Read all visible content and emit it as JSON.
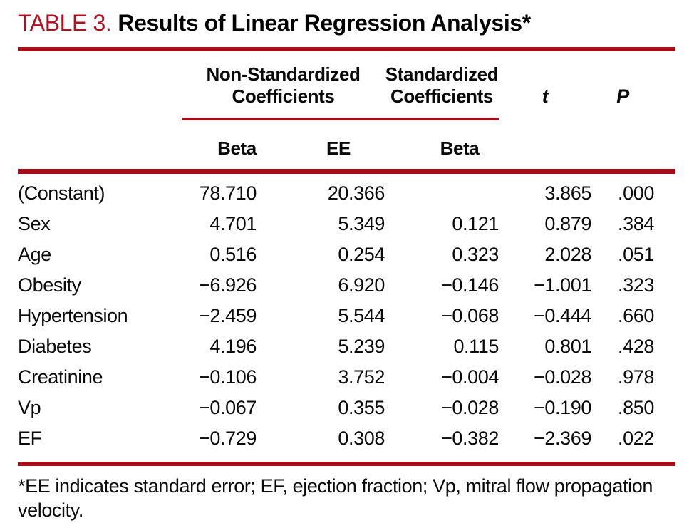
{
  "title": {
    "label": "TABLE 3.",
    "text": "Results of Linear Regression Analysis*"
  },
  "table": {
    "group_headers": [
      {
        "line1": "Non-Standardized",
        "line2": "Coefficients"
      },
      {
        "line1": "Standardized",
        "line2": "Coefficients"
      }
    ],
    "stat_headers": {
      "t": "t",
      "p": "P"
    },
    "sub_headers": [
      "Beta",
      "EE",
      "Beta"
    ],
    "rows": [
      {
        "label": "(Constant)",
        "beta_ns": "78.710",
        "ee": "20.366",
        "beta_s": "",
        "t": "3.865",
        "p": ".000"
      },
      {
        "label": "Sex",
        "beta_ns": "4.701",
        "ee": "5.349",
        "beta_s": "0.121",
        "t": "0.879",
        "p": ".384"
      },
      {
        "label": "Age",
        "beta_ns": "0.516",
        "ee": "0.254",
        "beta_s": "0.323",
        "t": "2.028",
        "p": ".051"
      },
      {
        "label": "Obesity",
        "beta_ns": "−6.926",
        "ee": "6.920",
        "beta_s": "−0.146",
        "t": "−1.001",
        "p": ".323"
      },
      {
        "label": "Hypertension",
        "beta_ns": "−2.459",
        "ee": "5.544",
        "beta_s": "−0.068",
        "t": "−0.444",
        "p": ".660"
      },
      {
        "label": "Diabetes",
        "beta_ns": "4.196",
        "ee": "5.239",
        "beta_s": "0.115",
        "t": "0.801",
        "p": ".428"
      },
      {
        "label": "Creatinine",
        "beta_ns": "−0.106",
        "ee": "3.752",
        "beta_s": "−0.004",
        "t": "−0.028",
        "p": ".978"
      },
      {
        "label": "Vp",
        "beta_ns": "−0.067",
        "ee": "0.355",
        "beta_s": "−0.028",
        "t": "−0.190",
        "p": ".850"
      },
      {
        "label": "EF",
        "beta_ns": "−0.729",
        "ee": "0.308",
        "beta_s": "−0.382",
        "t": "−2.369",
        "p": ".022"
      }
    ]
  },
  "footnote": "*EE indicates standard error; EF, ejection fraction; Vp, mitral flow propagation velocity.",
  "colors": {
    "title_red": "#b01020",
    "rule_red": "#a60d18",
    "text_black": "#0a0a0a"
  }
}
